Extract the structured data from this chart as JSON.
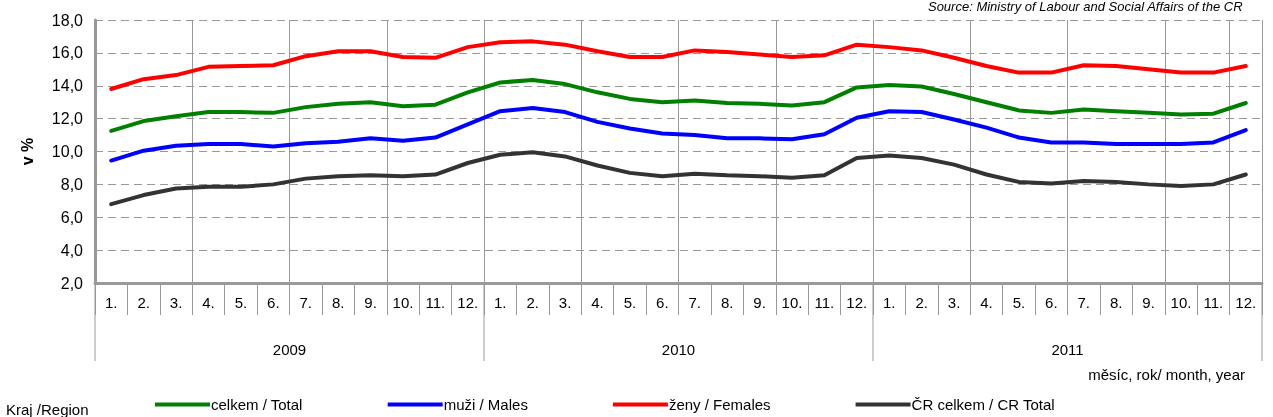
{
  "chart_data": {
    "type": "line",
    "categories": [
      "1.",
      "2.",
      "3.",
      "4.",
      "5.",
      "6.",
      "7.",
      "8.",
      "9.",
      "10.",
      "11.",
      "12.",
      "1.",
      "2.",
      "3.",
      "4.",
      "5.",
      "6.",
      "7.",
      "8.",
      "9.",
      "10.",
      "11.",
      "12.",
      "1.",
      "2.",
      "3.",
      "4.",
      "5.",
      "6.",
      "7.",
      "8.",
      "9.",
      "10.",
      "11.",
      "12."
    ],
    "series": [
      {
        "name": "celkem / Total",
        "color": "#008000",
        "values": [
          11.25,
          11.85,
          12.15,
          12.4,
          12.4,
          12.35,
          12.7,
          12.9,
          13.0,
          12.75,
          12.85,
          13.6,
          14.2,
          14.35,
          14.1,
          13.6,
          13.2,
          13.0,
          13.1,
          12.95,
          12.9,
          12.8,
          13.0,
          13.9,
          14.05,
          13.95,
          13.5,
          13.0,
          12.5,
          12.35,
          12.55,
          12.45,
          12.35,
          12.25,
          12.3,
          12.95
        ]
      },
      {
        "name": "muži / Males",
        "color": "#0000ff",
        "values": [
          9.45,
          10.05,
          10.35,
          10.45,
          10.45,
          10.3,
          10.5,
          10.6,
          10.8,
          10.65,
          10.85,
          11.65,
          12.45,
          12.65,
          12.4,
          11.8,
          11.4,
          11.1,
          11.0,
          10.8,
          10.8,
          10.75,
          11.05,
          12.05,
          12.45,
          12.4,
          11.95,
          11.45,
          10.85,
          10.55,
          10.55,
          10.45,
          10.45,
          10.45,
          10.55,
          11.3
        ]
      },
      {
        "name": "ženy / Females",
        "color": "#ff0000",
        "values": [
          13.8,
          14.4,
          14.65,
          15.15,
          15.2,
          15.25,
          15.8,
          16.1,
          16.1,
          15.75,
          15.7,
          16.35,
          16.65,
          16.7,
          16.5,
          16.1,
          15.75,
          15.75,
          16.15,
          16.05,
          15.9,
          15.75,
          15.85,
          16.5,
          16.35,
          16.15,
          15.7,
          15.2,
          14.8,
          14.8,
          15.25,
          15.2,
          15.0,
          14.8,
          14.8,
          15.2
        ]
      },
      {
        "name": "ČR celkem / CR Total",
        "color": "#333333",
        "values": [
          6.8,
          7.35,
          7.75,
          7.85,
          7.85,
          8.0,
          8.35,
          8.5,
          8.55,
          8.5,
          8.6,
          9.3,
          9.8,
          9.95,
          9.7,
          9.15,
          8.7,
          8.5,
          8.65,
          8.55,
          8.5,
          8.4,
          8.55,
          9.6,
          9.75,
          9.6,
          9.2,
          8.6,
          8.15,
          8.05,
          8.2,
          8.15,
          8.0,
          7.9,
          8.0,
          8.6
        ]
      }
    ],
    "ylabel": "v %",
    "xlabel": "měsíc, rok/ month, year",
    "legend_title": "Kraj /Region",
    "annotations": [
      "Source: Ministry of Labour and Social Affairs of the CR",
      "2009",
      "2010",
      "2011"
    ],
    "ylim": [
      2,
      18
    ],
    "yticks": [
      {
        "value": 2,
        "label": "2,0"
      },
      {
        "value": 4,
        "label": "4,0"
      },
      {
        "value": 6,
        "label": "6,0"
      },
      {
        "value": 8,
        "label": "8,0"
      },
      {
        "value": 10,
        "label": "10,0"
      },
      {
        "value": 12,
        "label": "12,0"
      },
      {
        "value": 14,
        "label": "14,0"
      },
      {
        "value": 16,
        "label": "16,0"
      },
      {
        "value": 18,
        "label": "18,0"
      }
    ],
    "grid": true,
    "legend": "bottom",
    "marker": "none",
    "line_style": "solid"
  }
}
